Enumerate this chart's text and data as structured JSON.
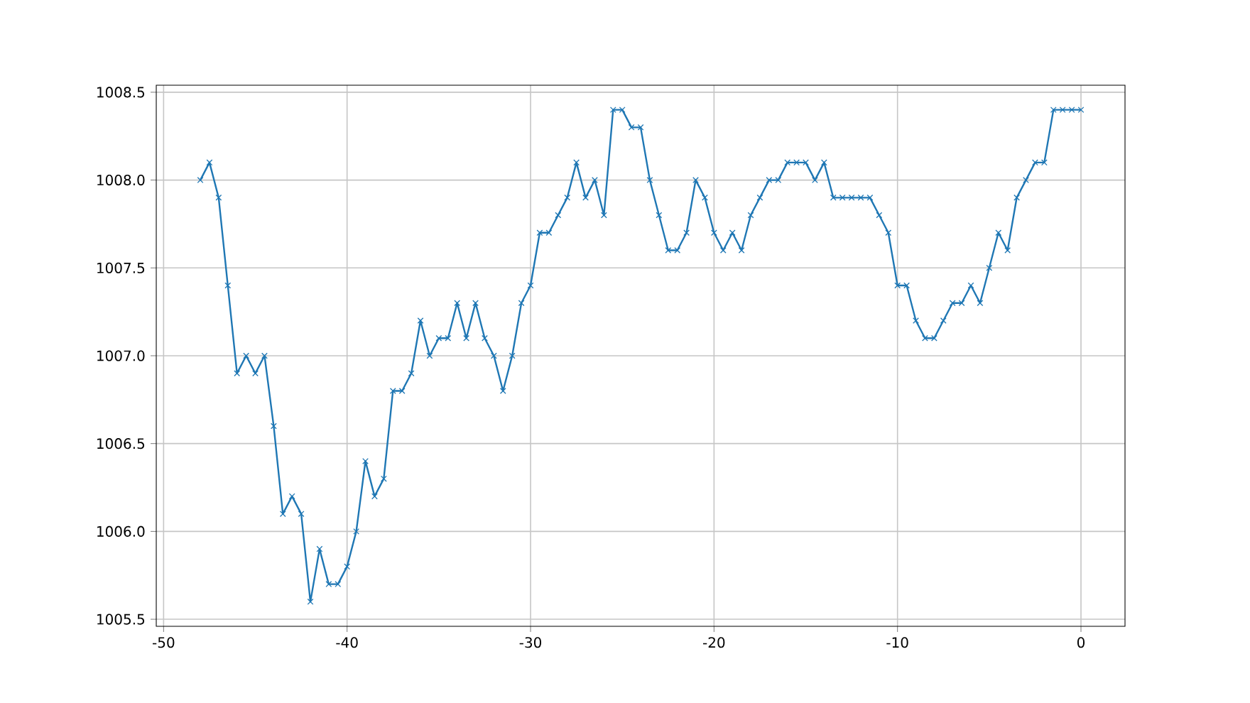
{
  "chart_data": {
    "type": "line",
    "marker": "cross",
    "grid": true,
    "line_style": "solid",
    "x": [
      -48,
      -47.5,
      -47,
      -46.5,
      -46,
      -45.5,
      -45,
      -44.5,
      -44,
      -43.5,
      -43,
      -42.5,
      -42,
      -41.5,
      -41,
      -40.5,
      -40,
      -39.5,
      -39,
      -38.5,
      -38,
      -37.5,
      -37,
      -36.5,
      -36,
      -35.5,
      -35,
      -34.5,
      -34,
      -33.5,
      -33,
      -32.5,
      -32,
      -31.5,
      -31,
      -30.5,
      -30,
      -29.5,
      -29,
      -28.5,
      -28,
      -27.5,
      -27,
      -26.5,
      -26,
      -25.5,
      -25,
      -24.5,
      -24,
      -23.5,
      -23,
      -22.5,
      -22,
      -21.5,
      -21,
      -20.5,
      -20,
      -19.5,
      -19,
      -18.5,
      -18,
      -17.5,
      -17,
      -16.5,
      -16,
      -15.5,
      -15,
      -14.5,
      -14,
      -13.5,
      -13,
      -12.5,
      -12,
      -11.5,
      -11,
      -10.5,
      -10,
      -9.5,
      -9,
      -8.5,
      -8,
      -7.5,
      -7,
      -6.5,
      -6,
      -5.5,
      -5,
      -4.5,
      -4,
      -3.5,
      -3,
      -2.5,
      -2,
      -1.5,
      -1,
      -0.5,
      0
    ],
    "series": [
      {
        "color": "#1f77b4",
        "values": [
          1008.0,
          1008.1,
          1007.9,
          1007.4,
          1006.9,
          1007.0,
          1006.9,
          1007.0,
          1006.6,
          1006.1,
          1006.2,
          1006.1,
          1005.6,
          1005.9,
          1005.7,
          1005.7,
          1005.8,
          1006.0,
          1006.4,
          1006.2,
          1006.3,
          1006.8,
          1006.8,
          1006.9,
          1007.2,
          1007.0,
          1007.1,
          1007.1,
          1007.3,
          1007.1,
          1007.3,
          1007.1,
          1007.0,
          1006.8,
          1007.0,
          1007.3,
          1007.4,
          1007.7,
          1007.7,
          1007.8,
          1007.9,
          1008.1,
          1007.9,
          1008.0,
          1007.8,
          1008.4,
          1008.4,
          1008.3,
          1008.3,
          1008.0,
          1007.8,
          1007.6,
          1007.6,
          1007.7,
          1008.0,
          1007.9,
          1007.7,
          1007.6,
          1007.7,
          1007.6,
          1007.8,
          1007.9,
          1008.0,
          1008.0,
          1008.1,
          1008.1,
          1008.1,
          1008.0,
          1008.1,
          1007.9,
          1007.9,
          1007.9,
          1007.9,
          1007.9,
          1007.8,
          1007.7,
          1007.4,
          1007.4,
          1007.2,
          1007.1,
          1007.1,
          1007.2,
          1007.3,
          1007.3,
          1007.4,
          1007.3,
          1007.5,
          1007.7,
          1007.6,
          1007.9,
          1008.0,
          1008.1,
          1008.1,
          1008.4,
          1008.4,
          1008.4,
          1008.4
        ]
      }
    ],
    "xlim": [
      -50.4,
      2.4
    ],
    "ylim": [
      1005.46,
      1008.54
    ],
    "xticks": [
      -50,
      -40,
      -30,
      -20,
      -10,
      0
    ],
    "yticks": [
      {
        "value": 1005.5,
        "label": "1005.5"
      },
      {
        "value": 1006,
        "label": "1006.0"
      },
      {
        "value": 1006.5,
        "label": "1006.5"
      },
      {
        "value": 1007,
        "label": "1007.0"
      },
      {
        "value": 1007.5,
        "label": "1007.5"
      },
      {
        "value": 1008,
        "label": "1008.0"
      },
      {
        "value": 1008.5,
        "label": "1008.5"
      }
    ]
  }
}
